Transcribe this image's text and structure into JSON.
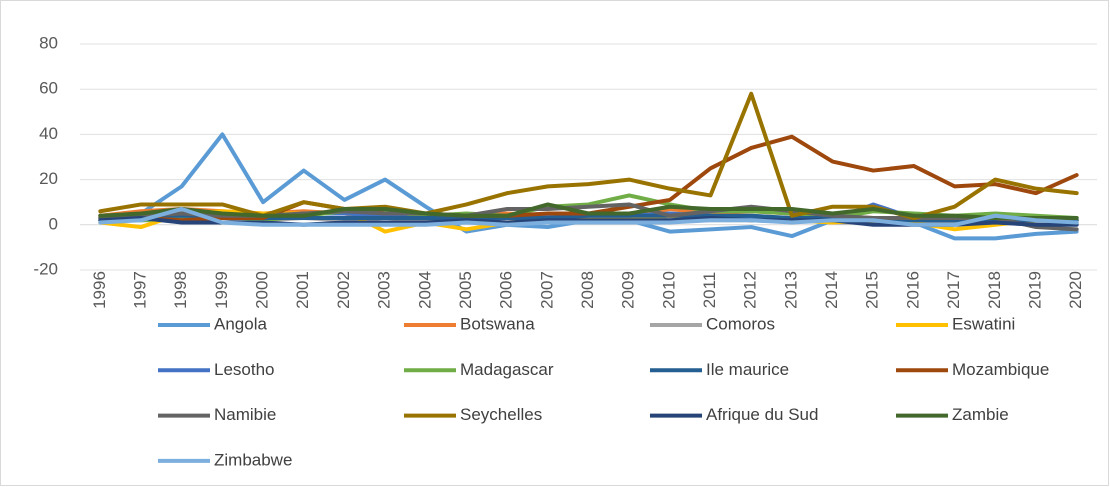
{
  "chart_data": {
    "type": "line",
    "categories": [
      "1996",
      "1997",
      "1998",
      "1999",
      "2000",
      "2001",
      "2002",
      "2003",
      "2004",
      "2005",
      "2006",
      "2007",
      "2008",
      "2009",
      "2010",
      "2011",
      "2012",
      "2013",
      "2014",
      "2015",
      "2016",
      "2017",
      "2018",
      "2019",
      "2020"
    ],
    "ylim": [
      -20,
      80
    ],
    "yticks": [
      -20,
      0,
      20,
      40,
      60,
      80
    ],
    "grid": true,
    "legend": "bottom",
    "series": [
      {
        "name": "Angola",
        "color": "#5b9bd5",
        "values": [
          2,
          5,
          17,
          40,
          10,
          24,
          11,
          20,
          8,
          -3,
          0,
          -1,
          2,
          2,
          -3,
          -2,
          -1,
          -5,
          2,
          3,
          1,
          -6,
          -6,
          -4,
          -3
        ]
      },
      {
        "name": "Botswana",
        "color": "#ed7d31",
        "values": [
          4,
          6,
          7,
          6,
          5,
          6,
          5,
          3,
          3,
          4,
          5,
          4,
          5,
          3,
          7,
          5,
          6,
          5,
          4,
          3,
          3,
          2,
          2,
          2,
          2
        ]
      },
      {
        "name": "Comoros",
        "color": "#a5a5a5",
        "values": [
          2,
          2,
          2,
          1,
          2,
          3,
          2,
          3,
          2,
          2,
          1,
          2,
          4,
          3,
          2,
          2,
          2,
          2,
          1,
          1,
          2,
          1,
          2,
          3,
          1
        ]
      },
      {
        "name": "Eswatini",
        "color": "#ffc000",
        "values": [
          1,
          -1,
          5,
          6,
          5,
          5,
          6,
          -3,
          1,
          -2,
          1,
          2,
          3,
          3,
          4,
          3,
          2,
          2,
          1,
          2,
          1,
          -2,
          0,
          2,
          1
        ]
      },
      {
        "name": "Lesotho",
        "color": "#4472c4",
        "values": [
          3,
          4,
          2,
          3,
          3,
          5,
          5,
          4,
          4,
          3,
          3,
          4,
          4,
          4,
          5,
          4,
          3,
          2,
          2,
          9,
          3,
          3,
          3,
          2,
          2
        ]
      },
      {
        "name": "Madagascar",
        "color": "#70ad47",
        "values": [
          2,
          2,
          3,
          4,
          2,
          4,
          6,
          6,
          4,
          5,
          4,
          8,
          9,
          13,
          9,
          6,
          6,
          5,
          3,
          6,
          5,
          4,
          5,
          4,
          3
        ]
      },
      {
        "name": "Ile maurice",
        "color": "#255e91",
        "values": [
          3,
          4,
          4,
          4,
          3,
          3,
          3,
          3,
          3,
          3,
          3,
          3,
          4,
          4,
          4,
          4,
          4,
          3,
          3,
          2,
          2,
          2,
          2,
          2,
          2
        ]
      },
      {
        "name": "Mozambique",
        "color": "#9e480e",
        "values": [
          4,
          3,
          2,
          3,
          3,
          10,
          7,
          5,
          5,
          4,
          4,
          5,
          5,
          8,
          11,
          25,
          34,
          39,
          28,
          24,
          26,
          17,
          18,
          14,
          22
        ]
      },
      {
        "name": "Namibie",
        "color": "#636363",
        "values": [
          3,
          4,
          5,
          4,
          4,
          5,
          6,
          5,
          5,
          4,
          7,
          7,
          8,
          9,
          4,
          6,
          8,
          6,
          4,
          3,
          3,
          3,
          3,
          -1,
          -2
        ]
      },
      {
        "name": "Seychelles",
        "color": "#997300",
        "values": [
          6,
          9,
          9,
          9,
          4,
          10,
          7,
          8,
          5,
          9,
          14,
          17,
          18,
          20,
          16,
          13,
          58,
          4,
          8,
          8,
          3,
          8,
          20,
          16,
          14
        ]
      },
      {
        "name": "Afrique du Sud",
        "color": "#264478",
        "values": [
          2,
          3,
          1,
          1,
          1,
          0,
          1,
          1,
          1,
          2,
          1,
          2,
          2,
          2,
          2,
          3,
          2,
          2,
          2,
          0,
          0,
          0,
          1,
          0,
          0
        ]
      },
      {
        "name": "Zambie",
        "color": "#43682b",
        "values": [
          4,
          5,
          7,
          5,
          4,
          4,
          7,
          7,
          5,
          4,
          4,
          9,
          5,
          5,
          8,
          7,
          7,
          7,
          5,
          7,
          4,
          4,
          3,
          3,
          3
        ]
      },
      {
        "name": "Zimbabwe",
        "color": "#7cafdd",
        "values": [
          1,
          2,
          7,
          1,
          0,
          0,
          0,
          0,
          0,
          1,
          0,
          1,
          1,
          1,
          1,
          2,
          2,
          1,
          2,
          2,
          0,
          0,
          4,
          2,
          1
        ]
      }
    ]
  }
}
